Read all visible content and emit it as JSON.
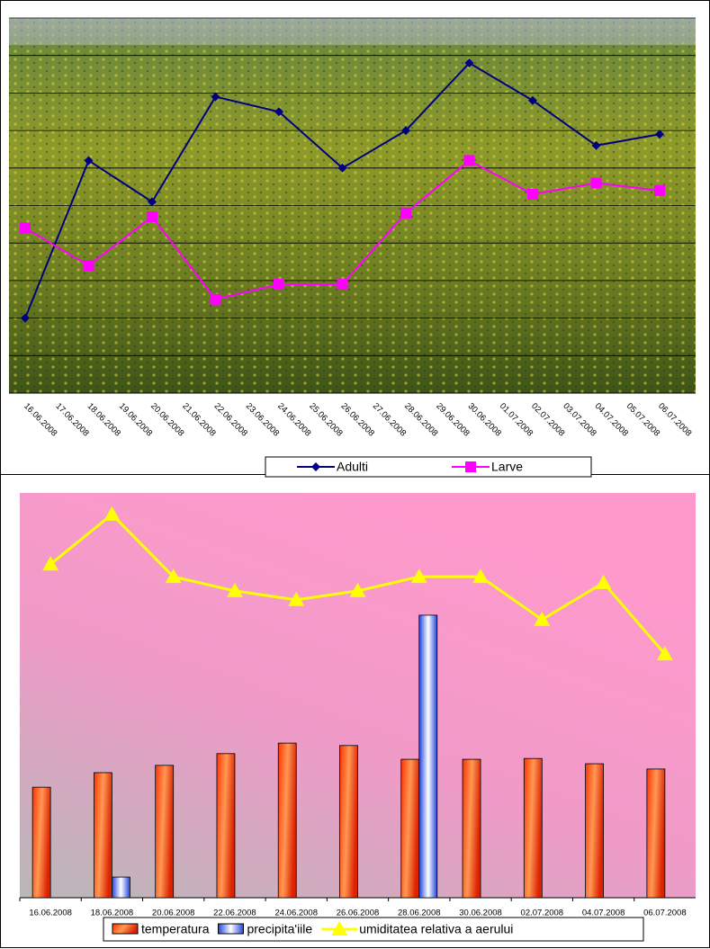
{
  "chart_data": [
    {
      "type": "line",
      "xticks": [
        "16.06.2008",
        "17.06.2008",
        "18.06.2008",
        "19.06.2008",
        "20.06.2008",
        "21.06.2008",
        "22.06.2008",
        "23.06.2008",
        "24.06.2008",
        "25.06.2008",
        "26.06.2008",
        "27.06.2008",
        "28.06.2008",
        "29.06.2008",
        "30.06.2008",
        "01.07.2008",
        "02.07.2008",
        "03.07.2008",
        "04.07.2008",
        "05.07.2008",
        "06.07.2008"
      ],
      "x": [
        "16.06.2008",
        "18.06.2008",
        "20.06.2008",
        "22.06.2008",
        "24.06.2008",
        "26.06.2008",
        "28.06.2008",
        "30.06.2008",
        "02.07.2008",
        "04.07.2008",
        "06.07.2008"
      ],
      "series": [
        {
          "name": "Adulti",
          "color": "#000080",
          "marker": "diamond",
          "values": [
            2.0,
            6.2,
            5.1,
            7.9,
            7.5,
            6.0,
            7.0,
            8.8,
            7.8,
            6.6,
            6.9
          ]
        },
        {
          "name": "Larve",
          "color": "#ff00ff",
          "marker": "square",
          "values": [
            4.4,
            3.4,
            4.7,
            2.5,
            2.9,
            2.9,
            4.8,
            6.2,
            5.3,
            5.6,
            5.4
          ]
        }
      ],
      "ylim": [
        0,
        10
      ],
      "yticks": [
        0,
        1,
        2,
        3,
        4,
        5,
        6,
        7,
        8,
        9,
        10
      ],
      "grid": true,
      "legend": "bottom"
    },
    {
      "type": "bar-line",
      "categories": [
        "16.06.2008",
        "18.06.2008",
        "20.06.2008",
        "22.06.2008",
        "24.06.2008",
        "26.06.2008",
        "28.06.2008",
        "30.06.2008",
        "02.07.2008",
        "04.07.2008",
        "06.07.2008"
      ],
      "series": [
        {
          "name": "temperatura",
          "kind": "bar",
          "color": "#ff3300",
          "values": [
            27.3,
            30.9,
            32.7,
            35.6,
            38.2,
            37.6,
            34.2,
            34.2,
            34.4,
            33.1,
            31.8
          ]
        },
        {
          "name": "precipita'iile",
          "kind": "bar",
          "color": "#3355ee",
          "values": [
            0,
            5.1,
            0,
            0,
            0,
            0,
            69.8,
            0,
            0,
            0,
            0
          ]
        },
        {
          "name": "umiditatea relativa a aerului",
          "kind": "line",
          "color": "#ffff00",
          "marker": "triangle",
          "values": [
            82.4,
            94.7,
            79.3,
            75.8,
            73.6,
            75.8,
            79.3,
            79.3,
            68.7,
            77.8,
            60.2
          ]
        }
      ],
      "ylim": [
        0,
        100
      ],
      "legend": "bottom"
    }
  ]
}
